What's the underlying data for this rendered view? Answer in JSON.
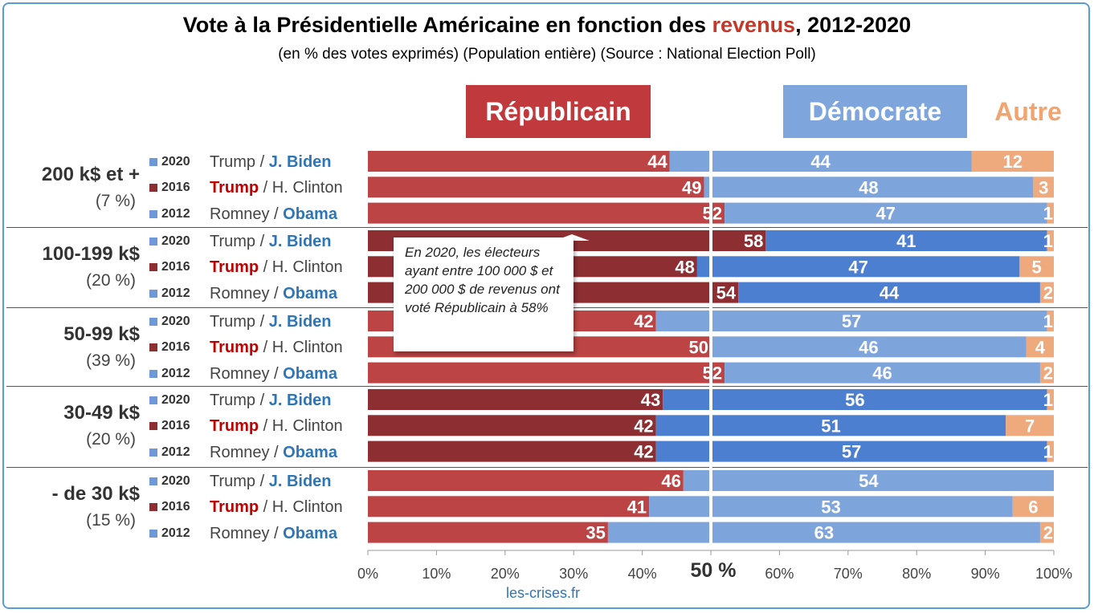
{
  "title": {
    "part1": "Vote à la Présidentielle Américaine en fonction des ",
    "accent": "revenus",
    "part2": ", 2012-2020"
  },
  "subtitle": "(en % des votes exprimés) (Population entière) (Source : National Election Poll)",
  "headers": {
    "rep": "Républicain",
    "dem": "Démocrate",
    "other": "Autre"
  },
  "colors": {
    "rep": "#bc4445",
    "rep_dark": "#8c2e32",
    "dem": "#7ea4dc",
    "dem_dark": "#4c7fcf",
    "other": "#eeaa7c",
    "marker_rep": "#8c2e32",
    "marker_dem": "#6f98d8"
  },
  "callout": "En 2020, les électeurs ayant entre 100 000 $ et 200 000 $ de revenus ont voté Républicain à 58%",
  "source": "les-crises.fr",
  "axis_mid_label": "50 %",
  "chart_data": {
    "type": "bar",
    "stacked": true,
    "orientation": "horizontal",
    "xlim": [
      0,
      100
    ],
    "x_ticks": [
      "0%",
      "10%",
      "20%",
      "30%",
      "40%",
      "50 %",
      "60%",
      "70%",
      "80%",
      "90%",
      "100%"
    ],
    "series_names": [
      "Républicain",
      "Démocrate",
      "Autre"
    ],
    "groups": [
      {
        "name": "200 k$ et +",
        "share": "(7 %)",
        "rows": [
          {
            "year": "2020",
            "rep_name": "Trump",
            "dem_name": "J. Biden",
            "winner": "dem",
            "rep": 44,
            "dem": 44,
            "other": 12
          },
          {
            "year": "2016",
            "rep_name": "Trump",
            "dem_name": "H. Clinton",
            "winner": "rep",
            "rep": 49,
            "dem": 48,
            "other": 3
          },
          {
            "year": "2012",
            "rep_name": "Romney",
            "dem_name": "Obama",
            "winner": "dem",
            "rep": 52,
            "dem": 47,
            "other": 1
          }
        ]
      },
      {
        "name": "100-199 k$",
        "share": "(20 %)",
        "rows": [
          {
            "year": "2020",
            "rep_name": "Trump",
            "dem_name": "J. Biden",
            "winner": "dem",
            "rep": 58,
            "dem": 41,
            "other": 1
          },
          {
            "year": "2016",
            "rep_name": "Trump",
            "dem_name": "H. Clinton",
            "winner": "rep",
            "rep": 48,
            "dem": 47,
            "other": 5
          },
          {
            "year": "2012",
            "rep_name": "Romney",
            "dem_name": "Obama",
            "winner": "dem",
            "rep": 54,
            "dem": 44,
            "other": 2
          }
        ]
      },
      {
        "name": "50-99 k$",
        "share": "(39 %)",
        "rows": [
          {
            "year": "2020",
            "rep_name": "Trump",
            "dem_name": "J. Biden",
            "winner": "dem",
            "rep": 42,
            "dem": 57,
            "other": 1
          },
          {
            "year": "2016",
            "rep_name": "Trump",
            "dem_name": "H. Clinton",
            "winner": "rep",
            "rep": 50,
            "dem": 46,
            "other": 4
          },
          {
            "year": "2012",
            "rep_name": "Romney",
            "dem_name": "Obama",
            "winner": "dem",
            "rep": 52,
            "dem": 46,
            "other": 2
          }
        ]
      },
      {
        "name": "30-49 k$",
        "share": "(20 %)",
        "rows": [
          {
            "year": "2020",
            "rep_name": "Trump",
            "dem_name": "J. Biden",
            "winner": "dem",
            "rep": 43,
            "dem": 56,
            "other": 1
          },
          {
            "year": "2016",
            "rep_name": "Trump",
            "dem_name": "H. Clinton",
            "winner": "rep",
            "rep": 42,
            "dem": 51,
            "other": 7
          },
          {
            "year": "2012",
            "rep_name": "Romney",
            "dem_name": "Obama",
            "winner": "dem",
            "rep": 42,
            "dem": 57,
            "other": 1
          }
        ]
      },
      {
        "name": "- de 30 k$",
        "share": "(15 %)",
        "rows": [
          {
            "year": "2020",
            "rep_name": "Trump",
            "dem_name": "J. Biden",
            "winner": "dem",
            "rep": 46,
            "dem": 54,
            "other": 0
          },
          {
            "year": "2016",
            "rep_name": "Trump",
            "dem_name": "H. Clinton",
            "winner": "rep",
            "rep": 41,
            "dem": 53,
            "other": 6
          },
          {
            "year": "2012",
            "rep_name": "Romney",
            "dem_name": "Obama",
            "winner": "dem",
            "rep": 35,
            "dem": 63,
            "other": 2
          }
        ]
      }
    ]
  }
}
